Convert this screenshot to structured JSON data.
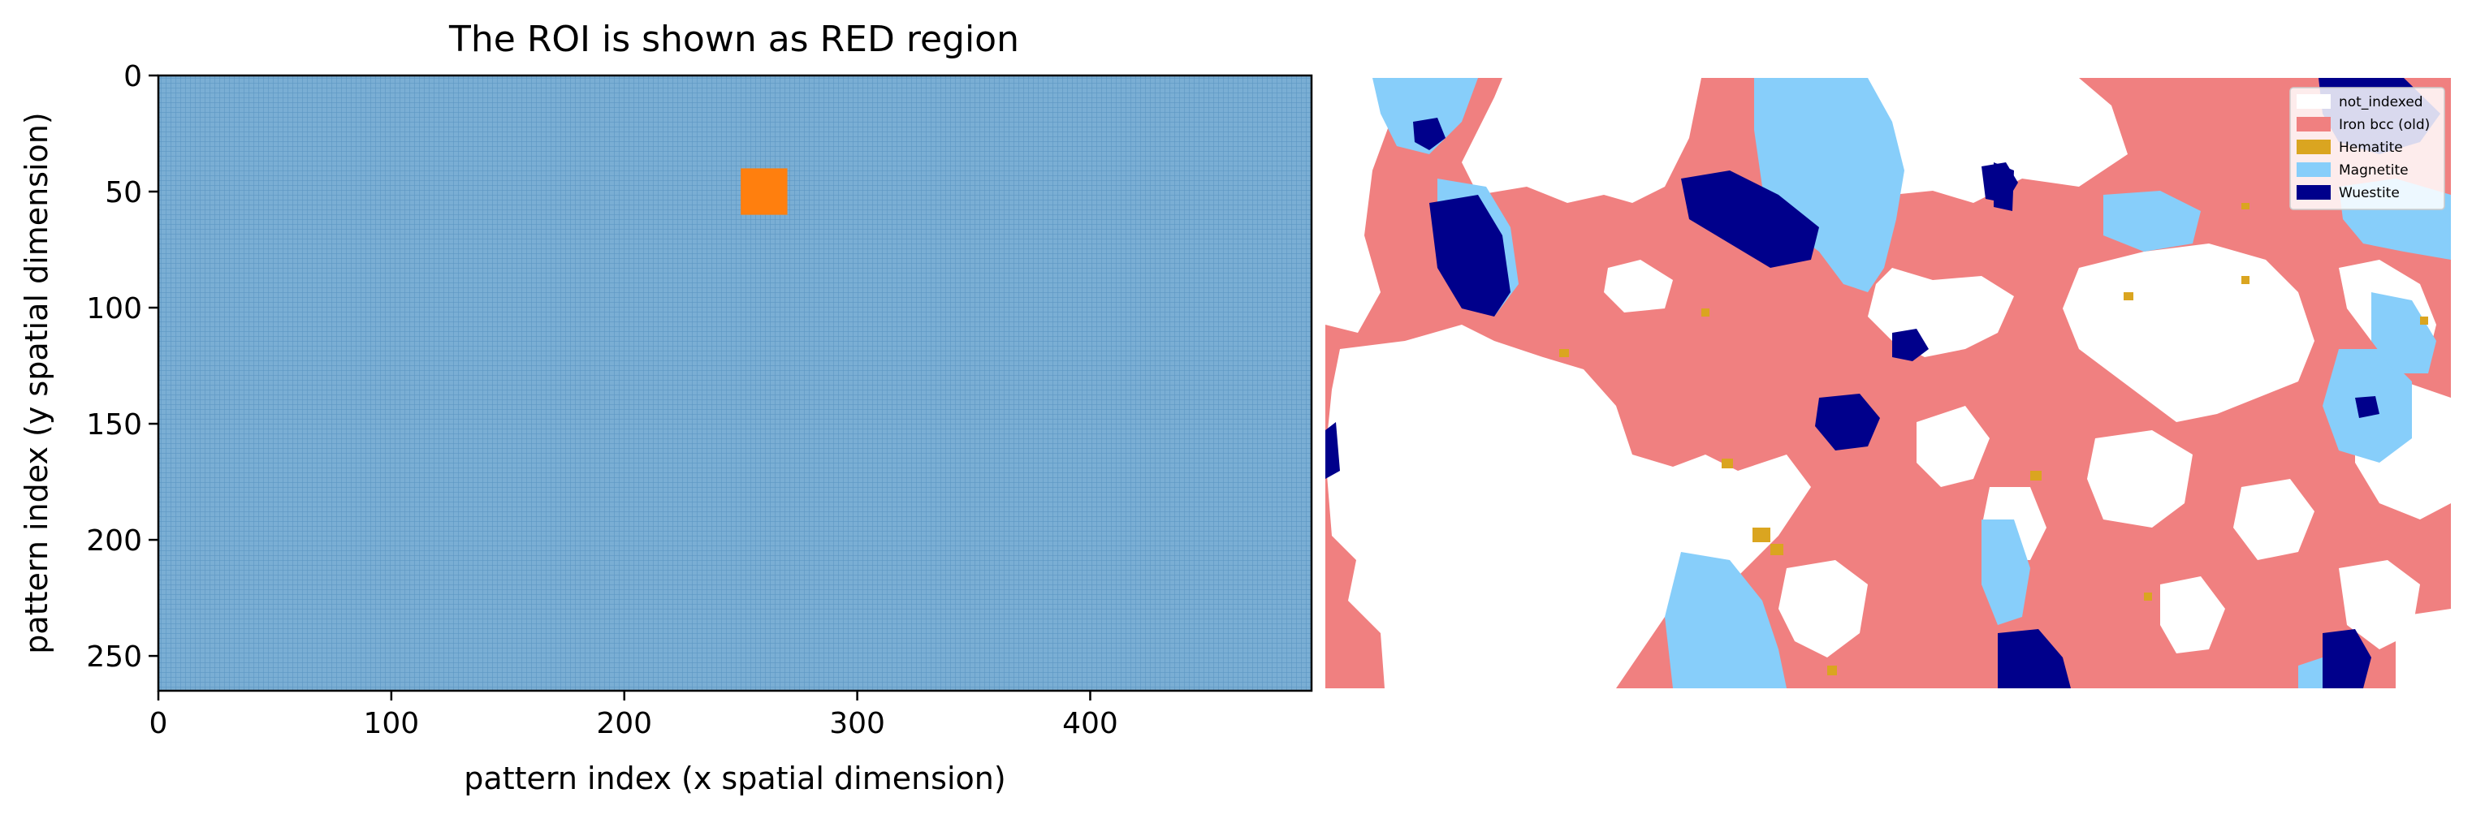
{
  "chart_data": [
    {
      "type": "heatmap",
      "title": "The ROI is shown as RED region",
      "xlabel": "pattern index (x spatial dimension)",
      "ylabel": "pattern index (y spatial dimension)",
      "xlim": [
        0,
        495
      ],
      "ylim": [
        265,
        0
      ],
      "xticks": [
        0,
        100,
        200,
        300,
        400
      ],
      "yticks": [
        0,
        50,
        100,
        150,
        200,
        250
      ],
      "grid": true,
      "background_color": "#7aaed4",
      "grid_color": "#5d97c4",
      "roi": {
        "x": [
          250,
          270
        ],
        "y": [
          40,
          60
        ],
        "color": "#ff7f0e"
      }
    },
    {
      "type": "heatmap",
      "title": "",
      "legend_position": "top-right",
      "legend": [
        {
          "label": "not_indexed",
          "color": "#ffffff"
        },
        {
          "label": "Iron bcc (old)",
          "color": "#f08080"
        },
        {
          "label": "Hematite",
          "color": "#daa520"
        },
        {
          "label": "Magnetite",
          "color": "#87cefa"
        },
        {
          "label": "Wuestite",
          "color": "#00008b"
        }
      ]
    }
  ]
}
